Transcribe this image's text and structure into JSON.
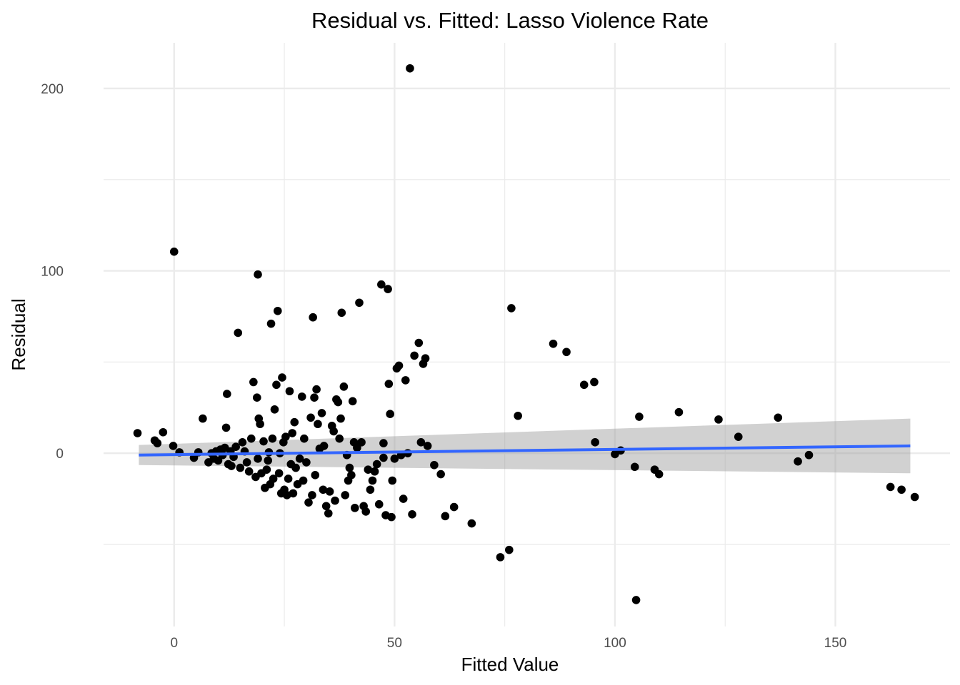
{
  "chart_data": {
    "type": "scatter",
    "title": "Residual vs. Fitted: Lasso Violence Rate",
    "xlabel": "Fitted Value",
    "ylabel": "Residual",
    "xlim": [
      -16,
      176
    ],
    "ylim": [
      -95,
      225
    ],
    "x_ticks": [
      0,
      50,
      100,
      150
    ],
    "x_tick_labels": [
      "0",
      "50",
      "100",
      "150"
    ],
    "y_ticks": [
      0,
      100,
      200
    ],
    "y_tick_labels": [
      "0",
      "100",
      "200"
    ],
    "x_minor_grid": [
      25,
      75,
      125
    ],
    "y_minor_grid": [
      -50,
      50,
      150
    ],
    "grid": true,
    "legend": "none",
    "colors": {
      "points": "#000000",
      "trend_line": "#3366ff",
      "confidence_band": "#999999",
      "grid": "#ebebeb"
    },
    "trend_line": {
      "method": "linear fit",
      "x": [
        -8,
        167
      ],
      "y": [
        -1.0,
        4.0
      ],
      "ci_lower": [
        -6.5,
        -11.0
      ],
      "ci_upper": [
        4.5,
        19.0
      ]
    },
    "points": [
      [
        -8.3,
        11
      ],
      [
        -4.4,
        7
      ],
      [
        -3.8,
        5.5
      ],
      [
        -2.5,
        11.5
      ],
      [
        0,
        110.5
      ],
      [
        -0.2,
        4
      ],
      [
        1.2,
        0.5
      ],
      [
        4.5,
        -2.5
      ],
      [
        5.5,
        0.5
      ],
      [
        6.5,
        19
      ],
      [
        7.8,
        -5
      ],
      [
        8.5,
        0
      ],
      [
        9,
        -3
      ],
      [
        9.5,
        1
      ],
      [
        10,
        -4
      ],
      [
        10.5,
        2
      ],
      [
        11,
        -1
      ],
      [
        11.5,
        3
      ],
      [
        11.8,
        14
      ],
      [
        12,
        32.5
      ],
      [
        12.3,
        -6
      ],
      [
        12.8,
        1
      ],
      [
        13,
        -7
      ],
      [
        13.5,
        -2
      ],
      [
        14,
        3.5
      ],
      [
        14.5,
        66
      ],
      [
        15,
        -8
      ],
      [
        15.5,
        6
      ],
      [
        16,
        1
      ],
      [
        16.5,
        -5
      ],
      [
        17,
        -10
      ],
      [
        17.5,
        8
      ],
      [
        18,
        39
      ],
      [
        18.5,
        -13
      ],
      [
        18.8,
        30.5
      ],
      [
        19,
        -3
      ],
      [
        19.2,
        19
      ],
      [
        19.5,
        16
      ],
      [
        19,
        98
      ],
      [
        19.8,
        -11
      ],
      [
        20.3,
        6.5
      ],
      [
        20.6,
        -19
      ],
      [
        21,
        -9
      ],
      [
        21.3,
        -4
      ],
      [
        21.5,
        0.5
      ],
      [
        21.8,
        -17
      ],
      [
        22,
        71
      ],
      [
        22.3,
        8
      ],
      [
        22.5,
        -14
      ],
      [
        22.8,
        24
      ],
      [
        23.2,
        37.5
      ],
      [
        23.5,
        78
      ],
      [
        23.8,
        -11
      ],
      [
        24,
        0
      ],
      [
        24.3,
        -22
      ],
      [
        24.5,
        41.5
      ],
      [
        24.8,
        6
      ],
      [
        25,
        -20
      ],
      [
        25.3,
        9
      ],
      [
        25.6,
        -23
      ],
      [
        25.9,
        -14
      ],
      [
        26.2,
        34
      ],
      [
        26.5,
        -6
      ],
      [
        26.8,
        11
      ],
      [
        27,
        -22
      ],
      [
        27.3,
        17
      ],
      [
        27.6,
        -8
      ],
      [
        28,
        -17
      ],
      [
        28.5,
        -3
      ],
      [
        29,
        31
      ],
      [
        29.3,
        -15
      ],
      [
        29.5,
        8
      ],
      [
        30,
        -5
      ],
      [
        30.5,
        -27
      ],
      [
        31,
        19.5
      ],
      [
        31.3,
        -23
      ],
      [
        31.5,
        74.5
      ],
      [
        31.8,
        30.5
      ],
      [
        32,
        -12
      ],
      [
        32.3,
        35
      ],
      [
        32.6,
        16
      ],
      [
        33,
        2.5
      ],
      [
        33.5,
        22
      ],
      [
        33.8,
        -20
      ],
      [
        34,
        4
      ],
      [
        34.5,
        -29
      ],
      [
        35,
        -33
      ],
      [
        35.3,
        -21
      ],
      [
        35.8,
        15
      ],
      [
        36.2,
        12
      ],
      [
        36.5,
        -26
      ],
      [
        36.8,
        29.5
      ],
      [
        37.2,
        28
      ],
      [
        37.5,
        8
      ],
      [
        37.8,
        19
      ],
      [
        38,
        77
      ],
      [
        38.5,
        36.5
      ],
      [
        38.8,
        -23
      ],
      [
        39.2,
        -1
      ],
      [
        39.5,
        -15
      ],
      [
        39.8,
        -8
      ],
      [
        40.2,
        -12
      ],
      [
        40.5,
        28.5
      ],
      [
        40.8,
        6
      ],
      [
        41,
        -30
      ],
      [
        41.5,
        3
      ],
      [
        42,
        82.5
      ],
      [
        42.5,
        6
      ],
      [
        43,
        -29
      ],
      [
        43.5,
        -32
      ],
      [
        44,
        -9
      ],
      [
        44.5,
        -20
      ],
      [
        45,
        -15
      ],
      [
        45.5,
        -10
      ],
      [
        46,
        -6
      ],
      [
        46.5,
        -28
      ],
      [
        47,
        92.5
      ],
      [
        47.5,
        -2.5
      ],
      [
        47.5,
        5.5
      ],
      [
        48,
        -34
      ],
      [
        48.5,
        90
      ],
      [
        48.7,
        38
      ],
      [
        49,
        21.5
      ],
      [
        49.3,
        -35
      ],
      [
        49.5,
        -15
      ],
      [
        50,
        -3
      ],
      [
        50.5,
        46.5
      ],
      [
        51,
        48
      ],
      [
        51.5,
        -1
      ],
      [
        52,
        -25
      ],
      [
        52.5,
        40
      ],
      [
        53,
        0
      ],
      [
        53.5,
        211
      ],
      [
        54,
        -33.5
      ],
      [
        54.5,
        53.5
      ],
      [
        55.5,
        60.5
      ],
      [
        56,
        6
      ],
      [
        56.5,
        49
      ],
      [
        57,
        52
      ],
      [
        57.5,
        4
      ],
      [
        59,
        -6.5
      ],
      [
        60.5,
        -11.5
      ],
      [
        61.5,
        -34.5
      ],
      [
        63.5,
        -29.5
      ],
      [
        67.5,
        -38.5
      ],
      [
        74,
        -57
      ],
      [
        76,
        -53
      ],
      [
        76.5,
        79.5
      ],
      [
        78,
        20.5
      ],
      [
        86,
        60
      ],
      [
        89,
        55.5
      ],
      [
        93,
        37.5
      ],
      [
        95.3,
        39
      ],
      [
        95.5,
        6
      ],
      [
        100,
        -0.5
      ],
      [
        101.3,
        1.5
      ],
      [
        104.5,
        -7.5
      ],
      [
        104.8,
        -80.5
      ],
      [
        105.5,
        20
      ],
      [
        114.5,
        22.5
      ],
      [
        109,
        -9
      ],
      [
        110,
        -11.5
      ],
      [
        123.5,
        18.5
      ],
      [
        128,
        9
      ],
      [
        137,
        19.5
      ],
      [
        141.5,
        -4.5
      ],
      [
        144,
        -1
      ],
      [
        162.5,
        -18.5
      ],
      [
        165,
        -20
      ],
      [
        168,
        -24
      ]
    ]
  }
}
